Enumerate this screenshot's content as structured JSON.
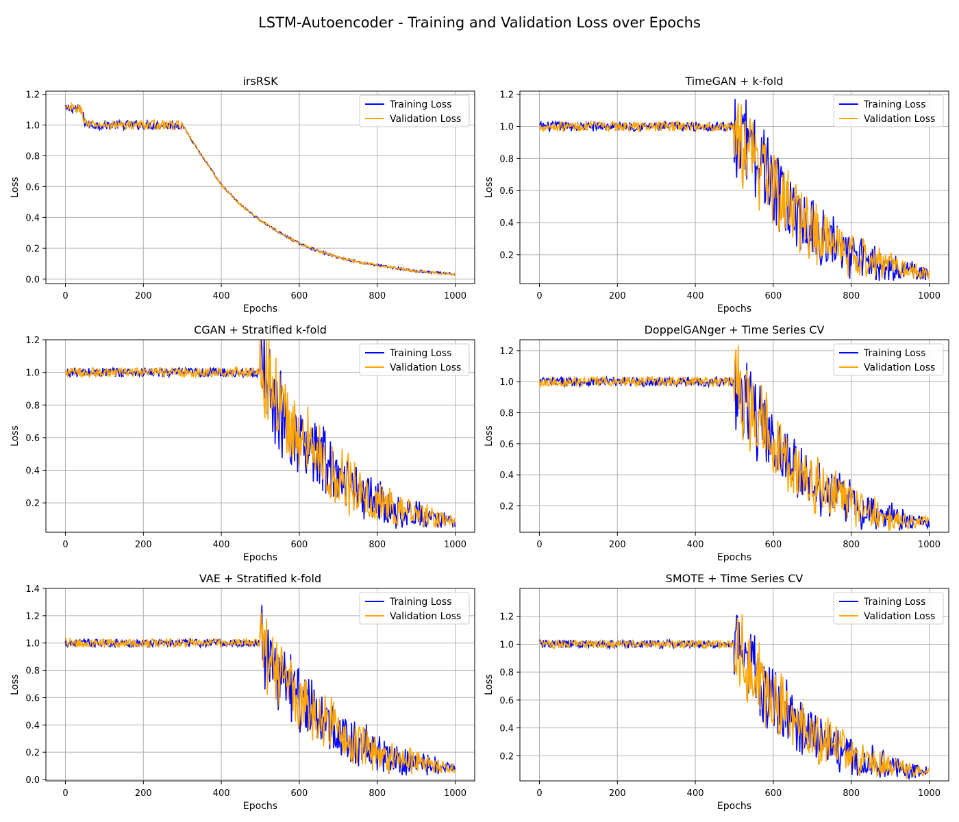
{
  "figure": {
    "title": "LSTM-Autoencoder - Training and Validation Loss over Epochs",
    "colors": {
      "training": "#0000ff",
      "validation": "#ffa500",
      "grid": "#b0b0b0"
    }
  },
  "chart_data": [
    {
      "type": "line",
      "title": "irsRSK",
      "xlabel": "Epochs",
      "ylabel": "Loss",
      "xlim": [
        -50,
        1050
      ],
      "ylim": [
        -0.03,
        1.22
      ],
      "xticks": [
        0,
        200,
        400,
        600,
        800,
        1000
      ],
      "yticks": [
        0.0,
        0.2,
        0.4,
        0.6,
        0.8,
        1.0,
        1.2
      ],
      "ytick_labels": [
        "0.0",
        "0.2",
        "0.4",
        "0.6",
        "0.8",
        "1.0",
        "1.2"
      ],
      "grid": true,
      "legend": "top-right",
      "series": [
        {
          "name": "Training Loss",
          "color": "#0000ff",
          "x": [
            0,
            20,
            40,
            50,
            60,
            100,
            150,
            200,
            250,
            300,
            350,
            400,
            450,
            500,
            550,
            600,
            650,
            700,
            750,
            800,
            850,
            900,
            950,
            1000
          ],
          "y": [
            1.1,
            1.11,
            1.1,
            1.02,
            1.0,
            1.0,
            1.0,
            1.0,
            1.0,
            1.0,
            0.8,
            0.61,
            0.48,
            0.38,
            0.3,
            0.23,
            0.18,
            0.14,
            0.11,
            0.09,
            0.07,
            0.05,
            0.04,
            0.03
          ]
        },
        {
          "name": "Validation Loss",
          "color": "#ffa500",
          "x": [
            0,
            20,
            40,
            50,
            60,
            100,
            150,
            200,
            250,
            300,
            350,
            400,
            450,
            500,
            550,
            600,
            650,
            700,
            750,
            800,
            850,
            900,
            950,
            1000
          ],
          "y": [
            1.1,
            1.11,
            1.1,
            1.02,
            1.0,
            1.0,
            1.0,
            1.0,
            1.0,
            1.0,
            0.8,
            0.61,
            0.48,
            0.38,
            0.3,
            0.23,
            0.18,
            0.14,
            0.11,
            0.09,
            0.07,
            0.05,
            0.04,
            0.03
          ]
        }
      ]
    },
    {
      "type": "line",
      "title": "TimeGAN + k-fold",
      "xlabel": "Epochs",
      "ylabel": "Loss",
      "xlim": [
        -50,
        1050
      ],
      "ylim": [
        0.02,
        1.22
      ],
      "xticks": [
        0,
        200,
        400,
        600,
        800,
        1000
      ],
      "yticks": [
        0.2,
        0.4,
        0.6,
        0.8,
        1.0,
        1.2
      ],
      "ytick_labels": [
        "0.2",
        "0.4",
        "0.6",
        "0.8",
        "1.0",
        "1.2"
      ],
      "grid": true,
      "legend": "top-right",
      "series": [
        {
          "name": "Training Loss",
          "color": "#0000ff",
          "x": [
            0,
            100,
            200,
            300,
            400,
            500,
            510,
            550,
            600,
            650,
            700,
            750,
            800,
            850,
            900,
            950,
            1000
          ],
          "y": [
            1.0,
            1.0,
            1.0,
            1.0,
            1.0,
            1.0,
            0.96,
            0.79,
            0.62,
            0.47,
            0.36,
            0.27,
            0.2,
            0.15,
            0.12,
            0.1,
            0.08
          ]
        },
        {
          "name": "Validation Loss",
          "color": "#ffa500",
          "x": [
            0,
            100,
            200,
            300,
            400,
            500,
            510,
            550,
            600,
            650,
            700,
            750,
            800,
            850,
            900,
            950,
            1000
          ],
          "y": [
            1.0,
            1.0,
            1.0,
            1.0,
            1.0,
            1.0,
            0.96,
            0.79,
            0.62,
            0.47,
            0.36,
            0.27,
            0.2,
            0.15,
            0.12,
            0.1,
            0.08
          ]
        }
      ]
    },
    {
      "type": "line",
      "title": "CGAN + Stratified k-fold",
      "xlabel": "Epochs",
      "ylabel": "Loss",
      "xlim": [
        -50,
        1050
      ],
      "ylim": [
        0.02,
        1.2
      ],
      "xticks": [
        0,
        200,
        400,
        600,
        800,
        1000
      ],
      "yticks": [
        0.2,
        0.4,
        0.6,
        0.8,
        1.0,
        1.2
      ],
      "ytick_labels": [
        "0.2",
        "0.4",
        "0.6",
        "0.8",
        "1.0",
        "1.2"
      ],
      "grid": true,
      "legend": "top-right",
      "series": [
        {
          "name": "Training Loss",
          "color": "#0000ff",
          "x": [
            0,
            100,
            200,
            300,
            400,
            500,
            510,
            550,
            600,
            650,
            700,
            750,
            800,
            850,
            900,
            950,
            1000
          ],
          "y": [
            1.0,
            1.0,
            1.0,
            1.0,
            1.0,
            1.0,
            0.96,
            0.78,
            0.61,
            0.47,
            0.36,
            0.28,
            0.21,
            0.16,
            0.13,
            0.1,
            0.08
          ]
        },
        {
          "name": "Validation Loss",
          "color": "#ffa500",
          "x": [
            0,
            100,
            200,
            300,
            400,
            500,
            510,
            550,
            600,
            650,
            700,
            750,
            800,
            850,
            900,
            950,
            1000
          ],
          "y": [
            1.0,
            1.0,
            1.0,
            1.0,
            1.0,
            1.0,
            0.96,
            0.78,
            0.61,
            0.47,
            0.36,
            0.28,
            0.21,
            0.16,
            0.13,
            0.1,
            0.08
          ]
        }
      ]
    },
    {
      "type": "line",
      "title": "DoppelGANger + Time Series CV",
      "xlabel": "Epochs",
      "ylabel": "Loss",
      "xlim": [
        -50,
        1050
      ],
      "ylim": [
        0.03,
        1.27
      ],
      "xticks": [
        0,
        200,
        400,
        600,
        800,
        1000
      ],
      "yticks": [
        0.2,
        0.4,
        0.6,
        0.8,
        1.0,
        1.2
      ],
      "ytick_labels": [
        "0.2",
        "0.4",
        "0.6",
        "0.8",
        "1.0",
        "1.2"
      ],
      "grid": true,
      "legend": "top-right",
      "series": [
        {
          "name": "Training Loss",
          "color": "#0000ff",
          "x": [
            0,
            100,
            200,
            300,
            400,
            500,
            510,
            550,
            600,
            650,
            700,
            750,
            800,
            850,
            900,
            950,
            1000
          ],
          "y": [
            1.0,
            1.0,
            1.0,
            1.0,
            1.0,
            1.0,
            0.96,
            0.78,
            0.61,
            0.47,
            0.36,
            0.28,
            0.21,
            0.16,
            0.13,
            0.1,
            0.09
          ]
        },
        {
          "name": "Validation Loss",
          "color": "#ffa500",
          "x": [
            0,
            100,
            200,
            300,
            400,
            500,
            510,
            550,
            600,
            650,
            700,
            750,
            800,
            850,
            900,
            950,
            1000
          ],
          "y": [
            1.0,
            1.0,
            1.0,
            1.0,
            1.0,
            1.0,
            0.96,
            0.78,
            0.61,
            0.47,
            0.36,
            0.28,
            0.21,
            0.16,
            0.13,
            0.1,
            0.09
          ]
        }
      ]
    },
    {
      "type": "line",
      "title": "VAE + Stratified k-fold",
      "xlabel": "Epochs",
      "ylabel": "Loss",
      "xlim": [
        -50,
        1050
      ],
      "ylim": [
        -0.01,
        1.4
      ],
      "xticks": [
        0,
        200,
        400,
        600,
        800,
        1000
      ],
      "yticks": [
        0.0,
        0.2,
        0.4,
        0.6,
        0.8,
        1.0,
        1.2,
        1.4
      ],
      "ytick_labels": [
        "0.0",
        "0.2",
        "0.4",
        "0.6",
        "0.8",
        "1.0",
        "1.2",
        "1.4"
      ],
      "grid": true,
      "legend": "top-right",
      "series": [
        {
          "name": "Training Loss",
          "color": "#0000ff",
          "x": [
            0,
            100,
            200,
            300,
            400,
            500,
            510,
            550,
            600,
            650,
            700,
            750,
            800,
            850,
            900,
            950,
            1000
          ],
          "y": [
            1.0,
            1.0,
            1.0,
            1.0,
            1.0,
            1.0,
            0.95,
            0.77,
            0.6,
            0.46,
            0.35,
            0.27,
            0.2,
            0.15,
            0.12,
            0.1,
            0.08
          ]
        },
        {
          "name": "Validation Loss",
          "color": "#ffa500",
          "x": [
            0,
            100,
            200,
            300,
            400,
            500,
            510,
            550,
            600,
            650,
            700,
            750,
            800,
            850,
            900,
            950,
            1000
          ],
          "y": [
            1.0,
            1.0,
            1.0,
            1.0,
            1.0,
            1.0,
            0.95,
            0.77,
            0.6,
            0.46,
            0.35,
            0.27,
            0.2,
            0.15,
            0.12,
            0.1,
            0.08
          ]
        }
      ]
    },
    {
      "type": "line",
      "title": "SMOTE + Time Series CV",
      "xlabel": "Epochs",
      "ylabel": "Loss",
      "xlim": [
        -50,
        1050
      ],
      "ylim": [
        0.02,
        1.4
      ],
      "xticks": [
        0,
        200,
        400,
        600,
        800,
        1000
      ],
      "yticks": [
        0.2,
        0.4,
        0.6,
        0.8,
        1.0,
        1.2
      ],
      "ytick_labels": [
        "0.2",
        "0.4",
        "0.6",
        "0.8",
        "1.0",
        "1.2"
      ],
      "grid": true,
      "legend": "top-right",
      "series": [
        {
          "name": "Training Loss",
          "color": "#0000ff",
          "x": [
            0,
            100,
            200,
            300,
            400,
            500,
            510,
            550,
            600,
            650,
            700,
            750,
            800,
            850,
            900,
            950,
            1000
          ],
          "y": [
            1.0,
            1.0,
            1.0,
            1.0,
            1.0,
            1.0,
            0.96,
            0.78,
            0.61,
            0.47,
            0.36,
            0.28,
            0.21,
            0.16,
            0.13,
            0.1,
            0.08
          ]
        },
        {
          "name": "Validation Loss",
          "color": "#ffa500",
          "x": [
            0,
            100,
            200,
            300,
            400,
            500,
            510,
            550,
            600,
            650,
            700,
            750,
            800,
            850,
            900,
            950,
            1000
          ],
          "y": [
            1.0,
            1.0,
            1.0,
            1.0,
            1.0,
            1.0,
            0.96,
            0.78,
            0.61,
            0.47,
            0.36,
            0.28,
            0.21,
            0.16,
            0.13,
            0.1,
            0.08
          ]
        }
      ]
    }
  ]
}
